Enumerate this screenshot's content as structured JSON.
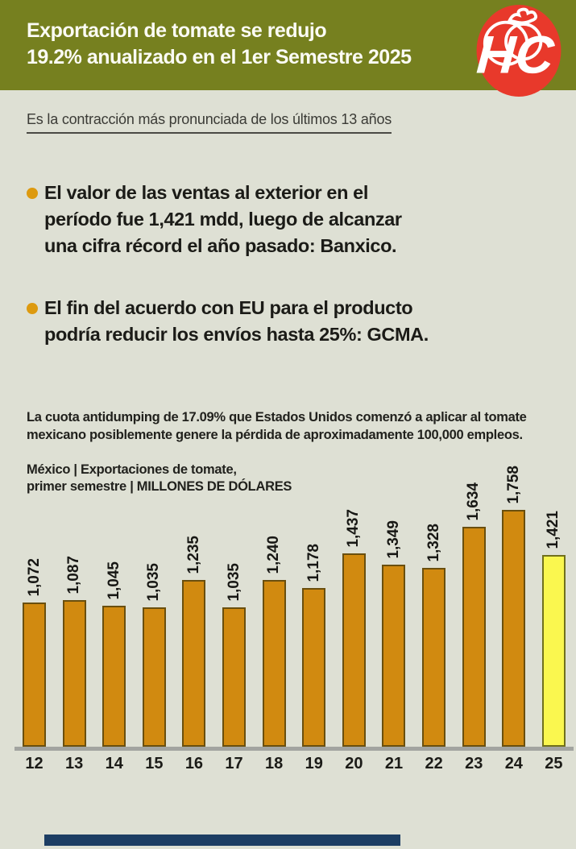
{
  "header": {
    "title": "Exportación de tomate se redujo\n19.2% anualizado en el 1er Semestre 2025",
    "bg_color": "#76801F",
    "logo_text": "HC",
    "logo_bg_color": "#E8392B",
    "logo_fg_color": "#FFFFFF"
  },
  "subtitle": "Es la contracción más pronunciada de los últimos 13 años",
  "bullets": [
    {
      "text": "El valor de las ventas al exterior en el\nperíodo fue 1,421 mdd, luego de alcanzar\nuna cifra récord el año pasado: Banxico."
    },
    {
      "text": "El fin del acuerdo con EU para el producto\npodría reducir los envíos hasta 25%: GCMA."
    }
  ],
  "bullet_color": "#DD9A0F",
  "note": "La cuota antidumping de 17.09% que Estados Unidos comenzó a aplicar al tomate\nmexicano posiblemente genere la pérdida de aproximadamente 100,000 empleos.",
  "chart_header": "México  |  Exportaciones de tomate,\nprimer semestre  |  MILLONES DE DÓLARES",
  "chart_data": {
    "type": "bar",
    "title": "México | Exportaciones de tomate, primer semestre",
    "ylabel": "MILLONES DE DÓLARES",
    "categories": [
      "12",
      "13",
      "14",
      "15",
      "16",
      "17",
      "18",
      "19",
      "20",
      "21",
      "22",
      "23",
      "24",
      "25"
    ],
    "values": [
      1072,
      1087,
      1045,
      1035,
      1235,
      1035,
      1240,
      1178,
      1437,
      1349,
      1328,
      1634,
      1758,
      1421
    ],
    "value_labels": [
      "1,072",
      "1,087",
      "1,045",
      "1,035",
      "1,235",
      "1,035",
      "1,240",
      "1,178",
      "1,437",
      "1,349",
      "1,328",
      "1,634",
      "1,758",
      "1,421"
    ],
    "ylim": [
      0,
      1758
    ],
    "bar_color": "#D18A10",
    "bar_border_color": "#6A4F0E",
    "highlight_index": 13,
    "highlight_color": "#FAF74F",
    "highlight_border_color": "#70701C",
    "grid": false,
    "legend": false
  },
  "footer": {
    "accent_bar_color": "#1C3D63"
  }
}
